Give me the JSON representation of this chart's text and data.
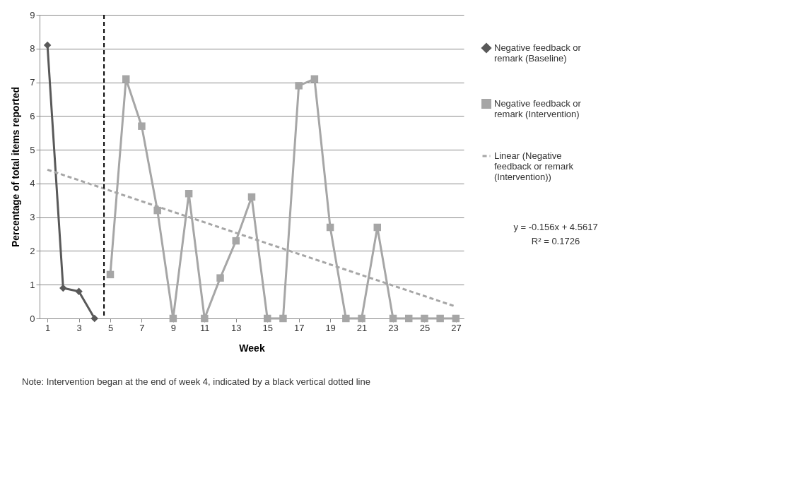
{
  "chart_data": {
    "type": "line",
    "xlabel": "Week",
    "ylabel": "Percentage of total items reported",
    "xlim": [
      0.5,
      27.5
    ],
    "xticks": [
      1,
      3,
      5,
      7,
      9,
      11,
      13,
      15,
      17,
      19,
      21,
      23,
      25,
      27
    ],
    "ylim": [
      0,
      9
    ],
    "yticks": [
      0,
      1,
      2,
      3,
      4,
      5,
      6,
      7,
      8,
      9
    ],
    "grid": "y",
    "legend": "right",
    "series": [
      {
        "name": "Negative feedback or remark (Baseline)",
        "color": "#595959",
        "marker": "diamond",
        "line_style": "solid",
        "x": [
          1,
          2,
          3,
          4
        ],
        "values": [
          8.1,
          0.9,
          0.8,
          0
        ]
      },
      {
        "name": "Negative feedback or remark (Intervention)",
        "color": "#a6a6a6",
        "marker": "square",
        "line_style": "solid",
        "x": [
          5,
          6,
          7,
          8,
          9,
          10,
          11,
          12,
          13,
          14,
          15,
          16,
          17,
          18,
          19,
          20,
          21,
          22,
          23,
          24,
          25,
          26,
          27
        ],
        "values": [
          1.3,
          7.1,
          5.7,
          3.2,
          0,
          3.7,
          0,
          1.2,
          2.3,
          3.6,
          0,
          0,
          6.9,
          7.1,
          2.7,
          0,
          0,
          2.7,
          0,
          0,
          0,
          0,
          0
        ]
      },
      {
        "name": "Linear (Negative feedback or remark (Intervention))",
        "type": "line",
        "color": "#a6a6a6",
        "marker": "none",
        "line_style": "dashed",
        "x": [
          1,
          27
        ],
        "values": [
          4.41,
          0.35
        ]
      }
    ],
    "ref_lines": [
      {
        "axis": "x",
        "value": 4.6,
        "color": "#000000",
        "line_style": "dashed"
      }
    ],
    "annotations": [
      "y = -0.156x + 4.5617",
      "R² = 0.1726",
      "Note: Intervention began at the end of week 4, indicated by a black vertical dotted line"
    ]
  }
}
